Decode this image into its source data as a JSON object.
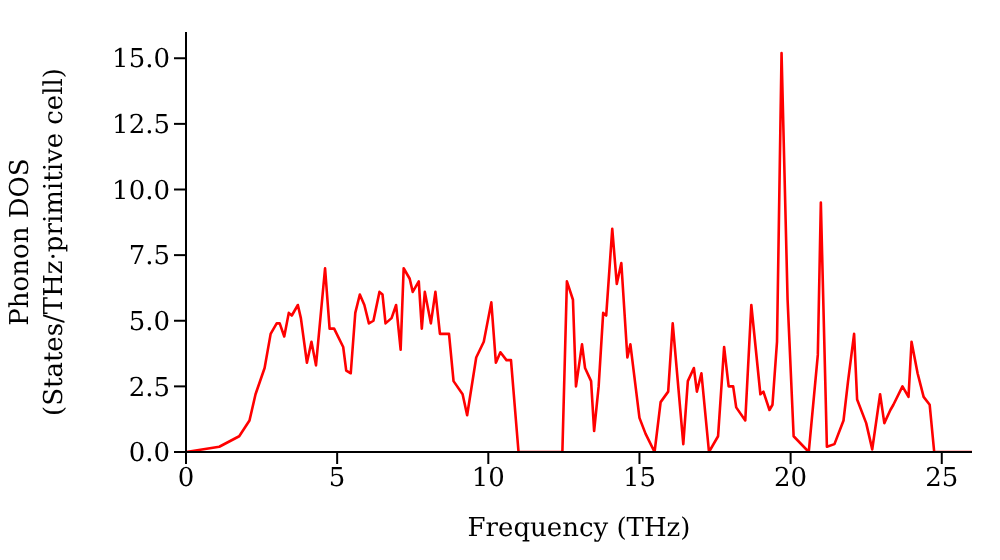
{
  "chart_data": {
    "type": "line",
    "xlabel": "Frequency (THz)",
    "ylabel": "Phonon DOS\n(States/THz·primitive cell)",
    "series": [
      {
        "color": "#ff0000",
        "x": [
          0,
          1.1,
          1.76,
          2.1,
          2.3,
          2.6,
          2.8,
          3.0,
          3.1,
          3.25,
          3.4,
          3.5,
          3.7,
          3.8,
          4.0,
          4.15,
          4.3,
          4.6,
          4.75,
          4.9,
          5.2,
          5.3,
          5.45,
          5.6,
          5.75,
          5.9,
          6.05,
          6.2,
          6.4,
          6.5,
          6.6,
          6.8,
          6.95,
          7.1,
          7.2,
          7.4,
          7.5,
          7.7,
          7.8,
          7.9,
          8.1,
          8.25,
          8.4,
          8.6,
          8.7,
          8.85,
          9.15,
          9.3,
          9.6,
          9.85,
          10.1,
          10.25,
          10.4,
          10.6,
          10.75,
          11.0,
          12.45,
          12.6,
          12.8,
          12.9,
          13.1,
          13.2,
          13.4,
          13.5,
          13.65,
          13.8,
          13.9,
          14.1,
          14.25,
          14.4,
          14.6,
          14.7,
          15.0,
          15.2,
          15.5,
          15.7,
          15.95,
          16.1,
          16.45,
          16.6,
          16.8,
          16.9,
          17.05,
          17.3,
          17.6,
          17.8,
          17.95,
          18.1,
          18.2,
          18.5,
          18.7,
          19.0,
          19.1,
          19.3,
          19.4,
          19.55,
          19.7,
          19.9,
          20.1,
          20.6,
          20.9,
          21.0,
          21.2,
          21.45,
          21.75,
          21.9,
          22.1,
          22.2,
          22.5,
          22.7,
          22.96,
          23.1,
          23.3,
          23.4,
          23.7,
          23.9,
          24.0,
          24.2,
          24.4,
          24.6,
          24.75,
          26
        ],
        "values": [
          0,
          0.2,
          0.6,
          1.2,
          2.2,
          3.2,
          4.5,
          4.9,
          4.9,
          4.4,
          5.3,
          5.2,
          5.6,
          5.1,
          3.4,
          4.2,
          3.3,
          7.0,
          4.7,
          4.7,
          4.0,
          3.1,
          3.0,
          5.3,
          6.0,
          5.6,
          4.9,
          5.0,
          6.1,
          6.0,
          4.9,
          5.1,
          5.6,
          3.9,
          7.0,
          6.6,
          6.1,
          6.5,
          4.7,
          6.1,
          4.9,
          6.1,
          4.5,
          4.5,
          4.5,
          2.7,
          2.2,
          1.4,
          3.6,
          4.2,
          5.7,
          3.4,
          3.8,
          3.5,
          3.5,
          0,
          0,
          6.5,
          5.8,
          2.5,
          4.1,
          3.2,
          2.7,
          0.8,
          2.5,
          5.3,
          5.2,
          8.5,
          6.4,
          7.2,
          3.6,
          4.1,
          1.3,
          0.7,
          0,
          1.9,
          2.3,
          4.9,
          0.3,
          2.7,
          3.2,
          2.3,
          3.0,
          0,
          0.6,
          4.0,
          2.5,
          2.5,
          1.7,
          1.2,
          5.6,
          2.2,
          2.3,
          1.6,
          1.8,
          4.2,
          15.2,
          5.8,
          0.6,
          0,
          3.7,
          9.5,
          0.2,
          0.3,
          1.2,
          2.7,
          4.5,
          2.0,
          1.1,
          0.1,
          2.2,
          1.1,
          1.6,
          1.8,
          2.5,
          2.1,
          4.2,
          3.0,
          2.1,
          1.8,
          0,
          0
        ]
      }
    ],
    "xlim": [
      0,
      26
    ],
    "xticks": [
      0,
      5,
      10,
      15,
      20,
      25
    ],
    "ylim": [
      0,
      16
    ],
    "yticks": [
      {
        "value": 0,
        "label": "0.0"
      },
      {
        "value": 2.5,
        "label": "2.5"
      },
      {
        "value": 5,
        "label": "5.0"
      },
      {
        "value": 7.5,
        "label": "7.5"
      },
      {
        "value": 10,
        "label": "10.0"
      },
      {
        "value": 12.5,
        "label": "12.5"
      },
      {
        "value": 15,
        "label": "15.0"
      }
    ],
    "grid": false,
    "legend": false,
    "marker": "none",
    "line_style": "solid"
  }
}
